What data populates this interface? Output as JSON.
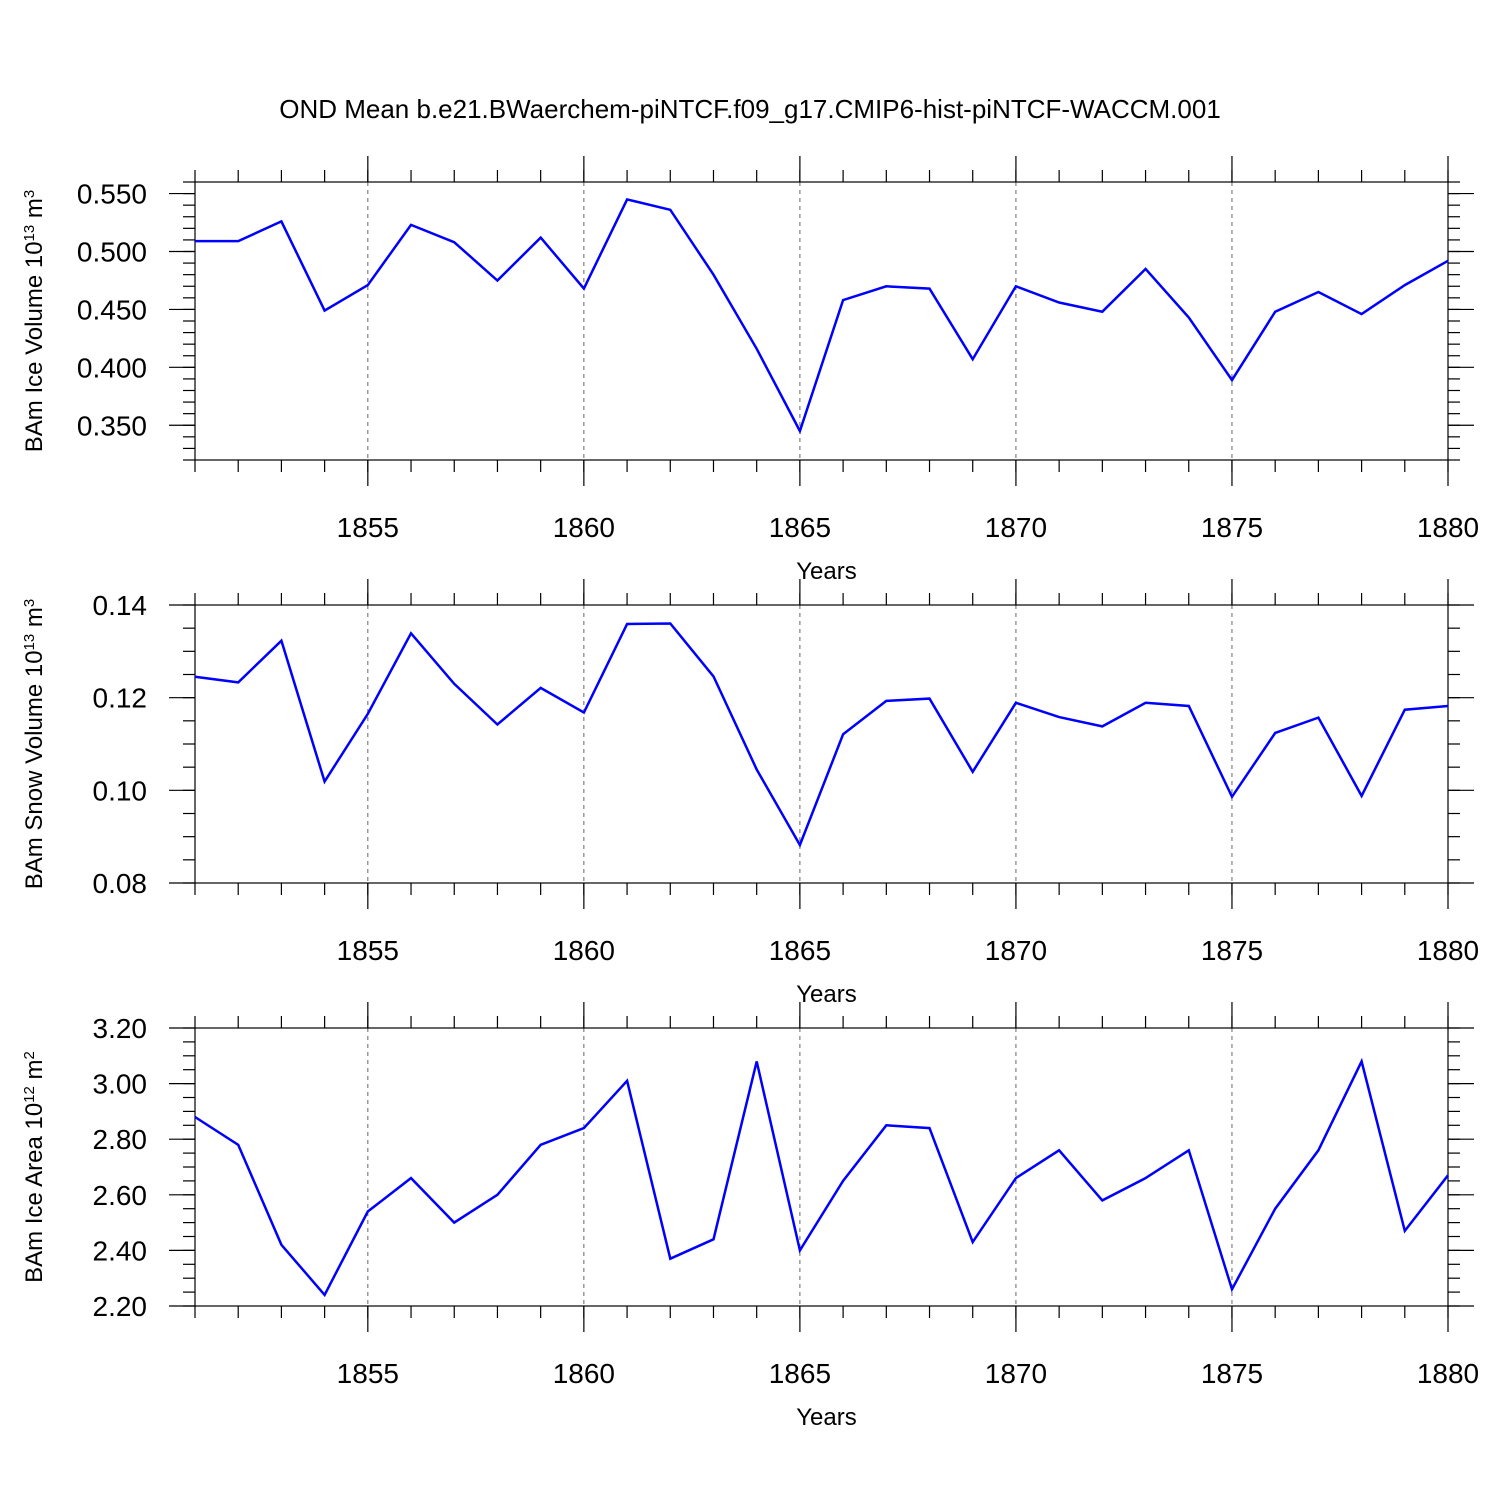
{
  "title": "OND Mean b.e21.BWaerchem-piNTCF.f09_g17.CMIP6-hist-piNTCF-WACCM.001",
  "chart_data": [
    {
      "type": "line",
      "ylabel_main": "BAm Ice Volume 10",
      "ylabel_exp": "13",
      "ylabel_unit": " m",
      "ylabel_unit_exp": "3",
      "xlabel": "Years",
      "xlim": [
        1851,
        1880
      ],
      "ylim": [
        0.32,
        0.56
      ],
      "yticks": [
        0.35,
        0.4,
        0.45,
        0.5,
        0.55
      ],
      "ytick_labels": [
        "0.350",
        "0.400",
        "0.450",
        "0.500",
        "0.550"
      ],
      "yminor": 0.01,
      "xticks": [
        1855,
        1860,
        1865,
        1870,
        1875,
        1880
      ],
      "xtick_labels": [
        "1855",
        "1860",
        "1865",
        "1870",
        "1875",
        "1880"
      ],
      "grid_x": true,
      "x": [
        1851,
        1852,
        1853,
        1854,
        1855,
        1856,
        1857,
        1858,
        1859,
        1860,
        1861,
        1862,
        1863,
        1864,
        1865,
        1866,
        1867,
        1868,
        1869,
        1870,
        1871,
        1872,
        1873,
        1874,
        1875,
        1876,
        1877,
        1878,
        1879,
        1880
      ],
      "values": [
        0.509,
        0.509,
        0.526,
        0.449,
        0.471,
        0.523,
        0.508,
        0.475,
        0.512,
        0.468,
        0.545,
        0.536,
        0.48,
        0.416,
        0.345,
        0.458,
        0.47,
        0.468,
        0.407,
        0.47,
        0.456,
        0.448,
        0.485,
        0.443,
        0.389,
        0.448,
        0.465,
        0.446,
        0.471,
        0.492
      ],
      "color": "#0000ff"
    },
    {
      "type": "line",
      "ylabel_main": "BAm Snow Volume 10",
      "ylabel_exp": "13",
      "ylabel_unit": " m",
      "ylabel_unit_exp": "3",
      "xlabel": "Years",
      "xlim": [
        1851,
        1880
      ],
      "ylim": [
        0.08,
        0.14
      ],
      "yticks": [
        0.08,
        0.1,
        0.12,
        0.14
      ],
      "ytick_labels": [
        "0.08",
        "0.10",
        "0.12",
        "0.14"
      ],
      "yminor": 0.005,
      "xticks": [
        1855,
        1860,
        1865,
        1870,
        1875,
        1880
      ],
      "xtick_labels": [
        "1855",
        "1860",
        "1865",
        "1870",
        "1875",
        "1880"
      ],
      "grid_x": true,
      "x": [
        1851,
        1852,
        1853,
        1854,
        1855,
        1856,
        1857,
        1858,
        1859,
        1860,
        1861,
        1862,
        1863,
        1864,
        1865,
        1866,
        1867,
        1868,
        1869,
        1870,
        1871,
        1872,
        1873,
        1874,
        1875,
        1876,
        1877,
        1878,
        1879,
        1880
      ],
      "values": [
        0.1245,
        0.1233,
        0.1323,
        0.1019,
        0.1165,
        0.1339,
        0.123,
        0.1142,
        0.1221,
        0.1168,
        0.1359,
        0.136,
        0.1246,
        0.1045,
        0.0882,
        0.1121,
        0.1193,
        0.1198,
        0.104,
        0.1189,
        0.1158,
        0.1138,
        0.1189,
        0.1182,
        0.0986,
        0.1124,
        0.1157,
        0.0988,
        0.1174,
        0.1182
      ],
      "color": "#0000ff"
    },
    {
      "type": "line",
      "ylabel_main": "BAm Ice Area 10",
      "ylabel_exp": "12",
      "ylabel_unit": " m",
      "ylabel_unit_exp": "2",
      "xlabel": "Years",
      "xlim": [
        1851,
        1880
      ],
      "ylim": [
        2.2,
        3.2
      ],
      "yticks": [
        2.2,
        2.4,
        2.6,
        2.8,
        3.0,
        3.2
      ],
      "ytick_labels": [
        "2.20",
        "2.40",
        "2.60",
        "2.80",
        "3.00",
        "3.20"
      ],
      "yminor": 0.05,
      "xticks": [
        1855,
        1860,
        1865,
        1870,
        1875,
        1880
      ],
      "xtick_labels": [
        "1855",
        "1860",
        "1865",
        "1870",
        "1875",
        "1880"
      ],
      "grid_x": true,
      "x": [
        1851,
        1852,
        1853,
        1854,
        1855,
        1856,
        1857,
        1858,
        1859,
        1860,
        1861,
        1862,
        1863,
        1864,
        1865,
        1866,
        1867,
        1868,
        1869,
        1870,
        1871,
        1872,
        1873,
        1874,
        1875,
        1876,
        1877,
        1878,
        1879,
        1880
      ],
      "values": [
        2.88,
        2.78,
        2.42,
        2.24,
        2.54,
        2.66,
        2.5,
        2.6,
        2.78,
        2.84,
        3.01,
        2.37,
        2.44,
        3.08,
        2.4,
        2.65,
        2.85,
        2.84,
        2.43,
        2.66,
        2.76,
        2.58,
        2.66,
        2.76,
        2.26,
        2.55,
        2.76,
        3.08,
        2.47,
        2.67
      ],
      "color": "#0000ff"
    }
  ]
}
